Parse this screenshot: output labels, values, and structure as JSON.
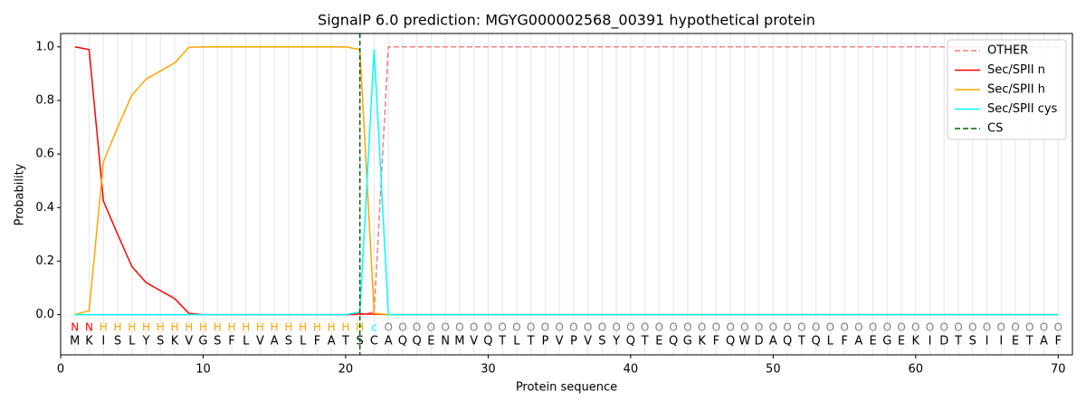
{
  "chart_data": {
    "type": "line",
    "title": "SignalP 6.0 prediction: MGYG000002568_00391 hypothetical protein",
    "x_label": "Protein sequence",
    "y_label": "Probability",
    "x": [
      1,
      2,
      3,
      4,
      5,
      6,
      7,
      8,
      9,
      10,
      11,
      12,
      13,
      14,
      15,
      16,
      17,
      18,
      19,
      20,
      21,
      22,
      23,
      24,
      25,
      26,
      27,
      28,
      29,
      30,
      31,
      32,
      33,
      34,
      35,
      36,
      37,
      38,
      39,
      40,
      41,
      42,
      43,
      44,
      45,
      46,
      47,
      48,
      49,
      50,
      51,
      52,
      53,
      54,
      55,
      56,
      57,
      58,
      59,
      60,
      61,
      62,
      63,
      64,
      65,
      66,
      67,
      68,
      69,
      70
    ],
    "sequence": [
      "M",
      "K",
      "I",
      "S",
      "L",
      "Y",
      "S",
      "K",
      "V",
      "G",
      "S",
      "F",
      "L",
      "V",
      "A",
      "S",
      "L",
      "F",
      "A",
      "T",
      "S",
      "C",
      "A",
      "Q",
      "Q",
      "E",
      "N",
      "M",
      "V",
      "Q",
      "T",
      "L",
      "T",
      "P",
      "V",
      "P",
      "V",
      "S",
      "Y",
      "Q",
      "T",
      "E",
      "Q",
      "G",
      "K",
      "F",
      "Q",
      "W",
      "D",
      "A",
      "Q",
      "T",
      "Q",
      "L",
      "F",
      "A",
      "E",
      "G",
      "E",
      "K",
      "I",
      "D",
      "T",
      "S",
      "I",
      "I",
      "E",
      "T",
      "A",
      "F"
    ],
    "labels": [
      "N",
      "N",
      "H",
      "H",
      "H",
      "H",
      "H",
      "H",
      "H",
      "H",
      "H",
      "H",
      "H",
      "H",
      "H",
      "H",
      "H",
      "H",
      "H",
      "H",
      "H",
      "c",
      "O",
      "O",
      "O",
      "O",
      "O",
      "O",
      "O",
      "O",
      "O",
      "O",
      "O",
      "O",
      "O",
      "O",
      "O",
      "O",
      "O",
      "O",
      "O",
      "O",
      "O",
      "O",
      "O",
      "O",
      "O",
      "O",
      "O",
      "O",
      "O",
      "O",
      "O",
      "O",
      "O",
      "O",
      "O",
      "O",
      "O",
      "O",
      "O",
      "O",
      "O",
      "O",
      "O",
      "O",
      "O",
      "O",
      "O",
      "O"
    ],
    "label_colors": {
      "N": "red",
      "H": "orange",
      "c": "cyan",
      "O": "gray"
    },
    "series": [
      {
        "name": "OTHER",
        "color": "#f08080",
        "dash": true,
        "values": [
          0,
          0,
          0,
          0,
          0,
          0,
          0,
          0,
          0,
          0,
          0,
          0,
          0,
          0,
          0,
          0,
          0,
          0,
          0,
          0,
          0,
          0.01,
          1,
          1,
          1,
          1,
          1,
          1,
          1,
          1,
          1,
          1,
          1,
          1,
          1,
          1,
          1,
          1,
          1,
          1,
          1,
          1,
          1,
          1,
          1,
          1,
          1,
          1,
          1,
          1,
          1,
          1,
          1,
          1,
          1,
          1,
          1,
          1,
          1,
          1,
          1,
          1,
          1,
          1,
          1,
          1,
          1,
          1,
          1,
          1
        ]
      },
      {
        "name": "Sec/SPII n",
        "color": "red",
        "dash": false,
        "values": [
          1.0,
          0.99,
          0.425,
          0.3,
          0.18,
          0.12,
          0.09,
          0.06,
          0.005,
          0,
          0,
          0,
          0,
          0,
          0,
          0,
          0,
          0,
          0,
          0,
          0.003,
          0.002,
          0,
          0,
          0,
          0,
          0,
          0,
          0,
          0,
          0,
          0,
          0,
          0,
          0,
          0,
          0,
          0,
          0,
          0,
          0,
          0,
          0,
          0,
          0,
          0,
          0,
          0,
          0,
          0,
          0,
          0,
          0,
          0,
          0,
          0,
          0,
          0,
          0,
          0,
          0,
          0,
          0,
          0,
          0,
          0,
          0,
          0,
          0,
          0
        ]
      },
      {
        "name": "Sec/SPII h",
        "color": "orange",
        "dash": false,
        "values": [
          0,
          0.015,
          0.57,
          0.7,
          0.82,
          0.88,
          0.91,
          0.94,
          0.998,
          1,
          1,
          1,
          1,
          1,
          1,
          1,
          1,
          1,
          1,
          1,
          0.99,
          0.005,
          0,
          0,
          0,
          0,
          0,
          0,
          0,
          0,
          0,
          0,
          0,
          0,
          0,
          0,
          0,
          0,
          0,
          0,
          0,
          0,
          0,
          0,
          0,
          0,
          0,
          0,
          0,
          0,
          0,
          0,
          0,
          0,
          0,
          0,
          0,
          0,
          0,
          0,
          0,
          0,
          0,
          0,
          0,
          0,
          0,
          0,
          0,
          0
        ]
      },
      {
        "name": "Sec/SPII cys",
        "color": "cyan",
        "dash": false,
        "values": [
          0,
          0,
          0,
          0,
          0,
          0,
          0,
          0,
          0,
          0,
          0,
          0,
          0,
          0,
          0,
          0,
          0,
          0,
          0,
          0,
          0.01,
          0.99,
          0,
          0,
          0,
          0,
          0,
          0,
          0,
          0,
          0,
          0,
          0,
          0,
          0,
          0,
          0,
          0,
          0,
          0,
          0,
          0,
          0,
          0,
          0,
          0,
          0,
          0,
          0,
          0,
          0,
          0,
          0,
          0,
          0,
          0,
          0,
          0,
          0,
          0,
          0,
          0,
          0,
          0,
          0,
          0,
          0,
          0,
          0,
          0
        ]
      }
    ],
    "cs": {
      "name": "CS",
      "color": "darkgreen",
      "x": 21
    },
    "xlim": [
      0,
      71
    ],
    "ylim": [
      -0.15,
      1.05
    ],
    "xticks": [
      0,
      10,
      20,
      30,
      40,
      50,
      60,
      70
    ],
    "yticks": [
      {
        "value": 0,
        "label": "0.0"
      },
      0.2,
      0.4,
      0.6,
      0.8,
      {
        "value": 1,
        "label": "1.0"
      }
    ],
    "position_grid": true,
    "legend": "upper right"
  }
}
